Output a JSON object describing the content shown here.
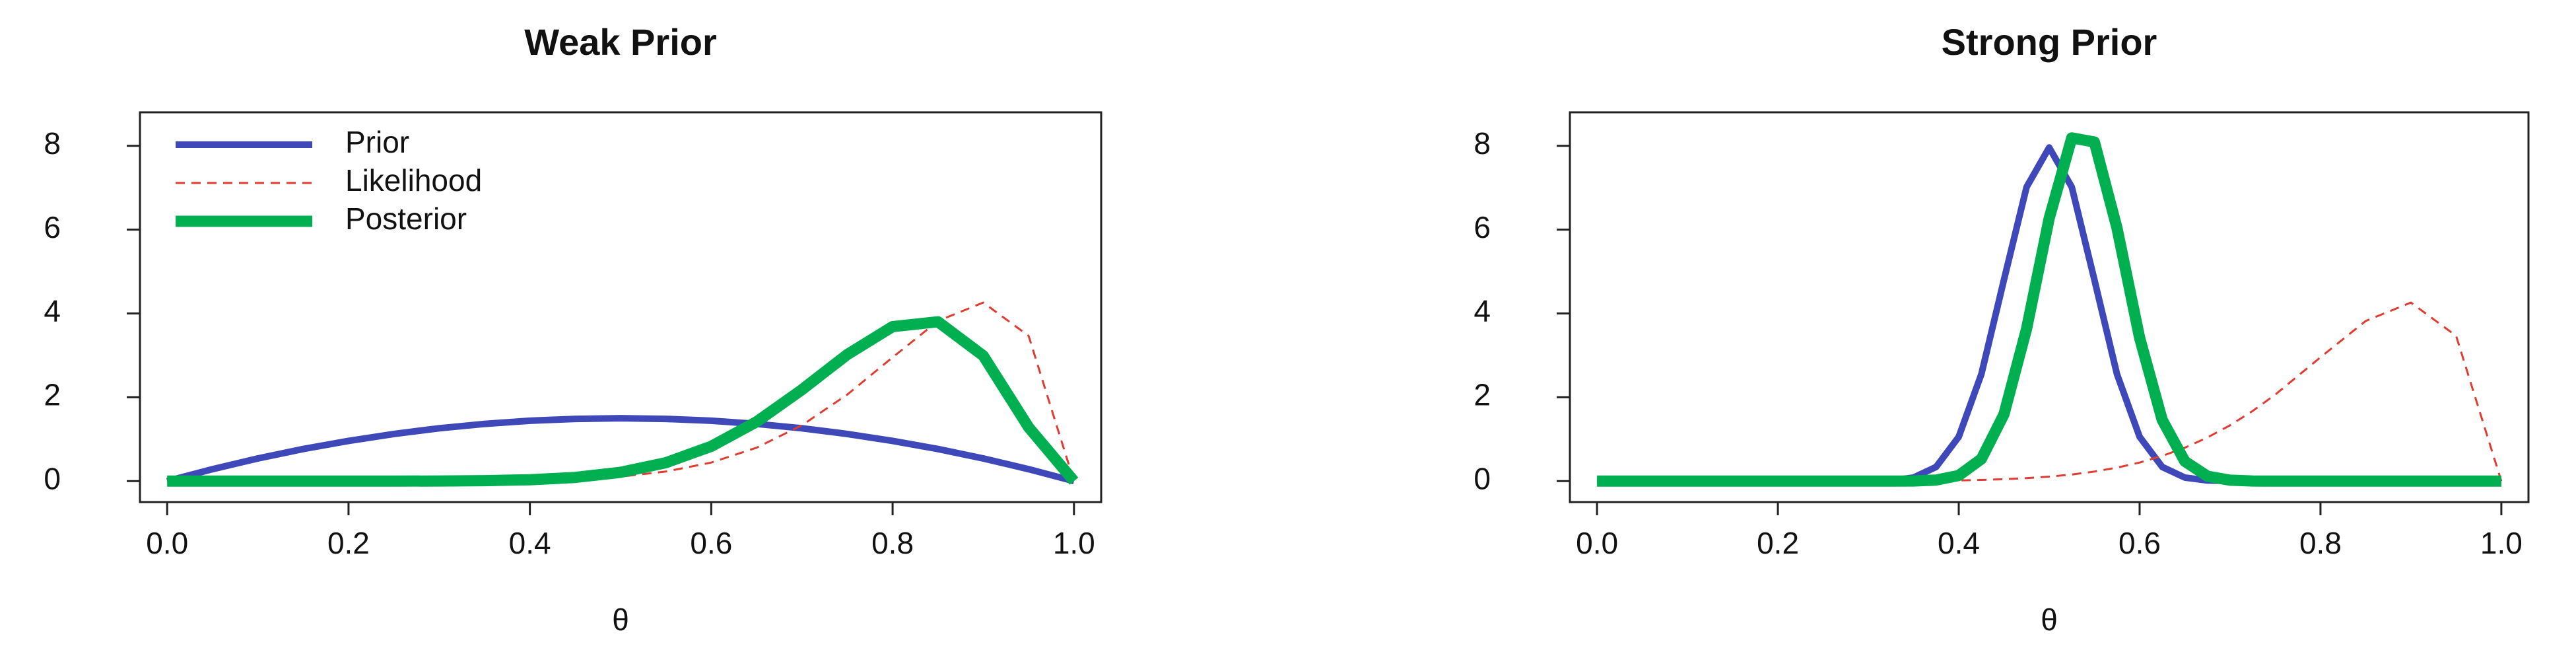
{
  "chart_data": [
    {
      "type": "line",
      "title": "Weak Prior",
      "xlabel": "θ",
      "x": [
        0,
        0.05,
        0.1,
        0.15,
        0.2,
        0.25,
        0.3,
        0.35,
        0.4,
        0.45,
        0.5,
        0.55,
        0.6,
        0.65,
        0.7,
        0.75,
        0.8,
        0.85,
        0.9,
        0.95,
        1
      ],
      "series": [
        {
          "name": "Prior",
          "color": "#3f48b8",
          "linestyle": "solid",
          "linewidth": 10,
          "values": [
            0,
            0.285,
            0.54,
            0.765,
            0.96,
            1.125,
            1.26,
            1.365,
            1.44,
            1.485,
            1.5,
            1.485,
            1.44,
            1.365,
            1.26,
            1.125,
            0.96,
            0.765,
            0.54,
            0.285,
            0
          ]
        },
        {
          "name": "Likelihood",
          "color": "#e03c31",
          "linestyle": "dashed",
          "linewidth": 3,
          "values": [
            0,
            0,
            0,
            0,
            0,
            0.0003,
            0.0015,
            0.0056,
            0.017,
            0.046,
            0.107,
            0.228,
            0.443,
            0.797,
            1.332,
            2.065,
            2.953,
            3.821,
            4.261,
            3.466,
            0
          ]
        },
        {
          "name": "Posterior",
          "color": "#00b050",
          "linestyle": "solid",
          "linewidth": 17,
          "values": [
            0,
            0,
            0,
            0,
            0,
            0,
            0.0025,
            0.01,
            0.0324,
            0.0884,
            0.2095,
            0.44,
            0.83,
            1.415,
            2.181,
            3.02,
            3.686,
            3.801,
            2.992,
            1.284,
            0
          ]
        }
      ],
      "xlim": [
        -0.03,
        1.03
      ],
      "ylim": [
        -0.5,
        8.8
      ],
      "xticks": [
        {
          "value": 0,
          "label": "0.0"
        },
        0.2,
        0.4,
        0.6,
        0.8,
        {
          "value": 1,
          "label": "1.0"
        }
      ],
      "yticks": [
        0,
        2,
        4,
        6,
        8
      ],
      "legend": "top-left"
    },
    {
      "type": "line",
      "title": "Strong Prior",
      "xlabel": "θ",
      "x": [
        0,
        0.05,
        0.1,
        0.15,
        0.2,
        0.25,
        0.3,
        0.325,
        0.35,
        0.375,
        0.4,
        0.425,
        0.45,
        0.475,
        0.5,
        0.525,
        0.55,
        0.575,
        0.6,
        0.625,
        0.65,
        0.675,
        0.7,
        0.725,
        0.75,
        0.8,
        0.85,
        0.9,
        0.95,
        1
      ],
      "series": [
        {
          "color": "#3f48b8",
          "linestyle": "solid",
          "linewidth": 10,
          "values": [
            0,
            0,
            0,
            0,
            0,
            0,
            0.0025,
            0.016,
            0.085,
            0.339,
            1.055,
            2.554,
            4.804,
            7.017,
            7.96,
            7.017,
            4.804,
            2.554,
            1.055,
            0.339,
            0.085,
            0.016,
            0.0025,
            0,
            0,
            0,
            0,
            0,
            0,
            0
          ]
        },
        {
          "color": "#e03c31",
          "linestyle": "dashed",
          "linewidth": 3,
          "values": [
            0,
            0,
            0,
            0,
            0,
            0.0003,
            0.0015,
            0.003,
            0.0056,
            0.0101,
            0.017,
            0.0286,
            0.046,
            0.0711,
            0.107,
            0.158,
            0.228,
            0.321,
            0.443,
            0.6,
            0.797,
            1.04,
            1.332,
            1.674,
            2.065,
            2.953,
            3.821,
            4.261,
            3.466,
            0
          ]
        },
        {
          "color": "#00b050",
          "linestyle": "solid",
          "linewidth": 17,
          "values": [
            0,
            0,
            0,
            0,
            0,
            0,
            0,
            0,
            0.0036,
            0.025,
            0.133,
            0.528,
            1.593,
            3.636,
            6.27,
            8.19,
            8.09,
            6.04,
            3.418,
            1.461,
            0.472,
            0.116,
            0.0215,
            0.0033,
            0,
            0,
            0,
            0,
            0,
            0
          ]
        }
      ],
      "xlim": [
        -0.03,
        1.03
      ],
      "ylim": [
        -0.5,
        8.8
      ],
      "xticks": [
        {
          "value": 0,
          "label": "0.0"
        },
        0.2,
        0.4,
        0.6,
        0.8,
        {
          "value": 1,
          "label": "1.0"
        }
      ],
      "yticks": [
        0,
        2,
        4,
        6,
        8
      ]
    }
  ]
}
